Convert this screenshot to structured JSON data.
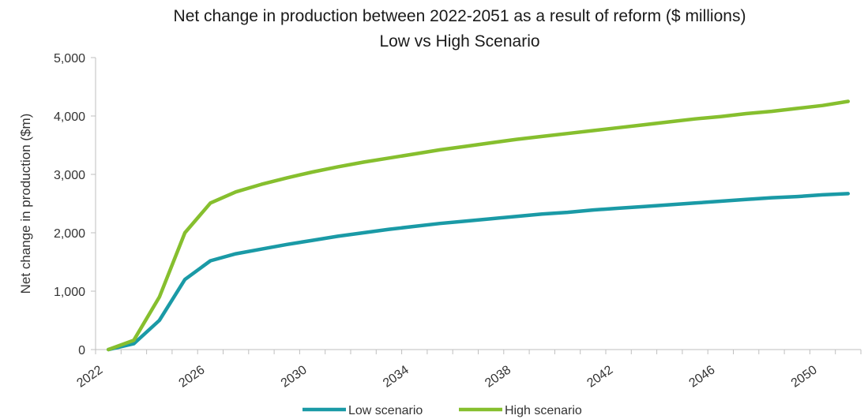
{
  "chart_data": {
    "type": "line",
    "title": "Net change in production between 2022-2051 as a result of reform ($ millions)",
    "subtitle": "Low vs High Scenario",
    "xlabel": "",
    "ylabel": "Net change in production ($m)",
    "ylim": [
      0,
      5000
    ],
    "yticks": [
      0,
      1000,
      2000,
      3000,
      4000,
      5000
    ],
    "ytick_labels": [
      "0",
      "1,000",
      "2,000",
      "3,000",
      "4,000",
      "5,000"
    ],
    "xticks": [
      2022,
      2026,
      2030,
      2034,
      2038,
      2042,
      2046,
      2050
    ],
    "xtick_labels": [
      "2022",
      "2026",
      "2030",
      "2034",
      "2038",
      "2042",
      "2046",
      "2050"
    ],
    "x": [
      2022.5,
      2023.5,
      2024.5,
      2025.5,
      2026.5,
      2027.5,
      2028.5,
      2029.5,
      2030.5,
      2031.5,
      2032.5,
      2033.5,
      2034.5,
      2035.5,
      2036.5,
      2037.5,
      2038.5,
      2039.5,
      2040.5,
      2041.5,
      2042.5,
      2043.5,
      2044.5,
      2045.5,
      2046.5,
      2047.5,
      2048.5,
      2049.5,
      2050.5,
      2051.5
    ],
    "series": [
      {
        "name": "Low scenario",
        "color": "#1a9aa6",
        "values": [
          0,
          100,
          500,
          1200,
          1520,
          1640,
          1720,
          1800,
          1870,
          1940,
          2000,
          2060,
          2110,
          2160,
          2200,
          2240,
          2280,
          2320,
          2350,
          2390,
          2420,
          2450,
          2480,
          2510,
          2540,
          2570,
          2600,
          2620,
          2650,
          2670
        ]
      },
      {
        "name": "High scenario",
        "color": "#86bf2e",
        "values": [
          0,
          160,
          900,
          2000,
          2510,
          2700,
          2830,
          2940,
          3040,
          3130,
          3210,
          3280,
          3350,
          3420,
          3480,
          3540,
          3600,
          3650,
          3700,
          3750,
          3800,
          3850,
          3900,
          3950,
          3990,
          4040,
          4080,
          4130,
          4180,
          4250
        ]
      }
    ],
    "legend": "bottom",
    "grid": false
  }
}
